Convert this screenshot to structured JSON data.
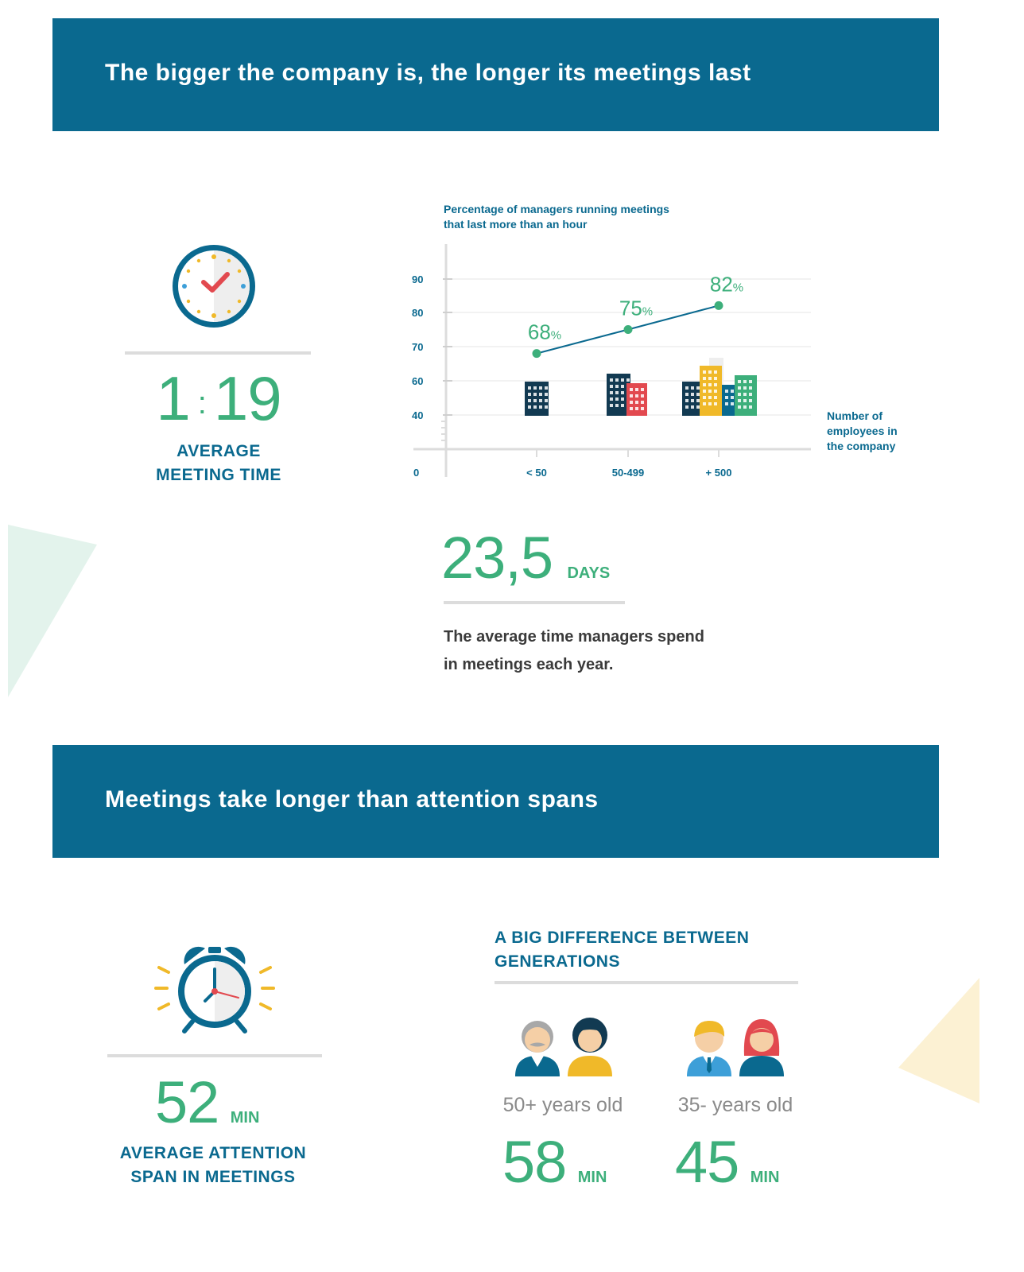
{
  "section1": {
    "title": "The bigger the company is, the longer its meetings last",
    "meeting_time": {
      "hours": "1",
      "separator": ":",
      "minutes": "19",
      "label_line1": "AVERAGE",
      "label_line2": "MEETING TIME",
      "icon": "clock-check-icon"
    },
    "days_stat": {
      "value": "23,5",
      "unit": "DAYS",
      "desc_line1": "The average time managers spend",
      "desc_line2": "in meetings each year."
    }
  },
  "chart_data": {
    "type": "line",
    "title_line1": "Percentage of managers running meetings",
    "title_line2": "that last more than an hour",
    "xlabel_line1": "Number of",
    "xlabel_line2": "employees in",
    "xlabel_line3": "the company",
    "categories": [
      "< 50",
      "50-499",
      "+ 500"
    ],
    "values": [
      68,
      75,
      82
    ],
    "value_labels": [
      "68",
      "75",
      "82"
    ],
    "value_suffix": "%",
    "y_ticks": [
      "90",
      "80",
      "70",
      "60",
      "40"
    ],
    "y_origin": "0",
    "ylim": [
      40,
      90
    ],
    "grid": true,
    "colors": {
      "line": "#0a698f",
      "point": "#3daf7b",
      "label": "#3daf7b"
    }
  },
  "section2": {
    "title": "Meetings take longer than attention spans",
    "attention": {
      "value": "52",
      "unit": "MIN",
      "label_line1": "AVERAGE ATTENTION",
      "label_line2": "SPAN IN MEETINGS",
      "icon": "alarm-clock-icon"
    },
    "generations": {
      "heading_line1": "A BIG DIFFERENCE BETWEEN",
      "heading_line2": "GENERATIONS",
      "groups": [
        {
          "label": "50+ years old",
          "value": "58",
          "unit": "MIN"
        },
        {
          "label": "35- years old",
          "value": "45",
          "unit": "MIN"
        }
      ]
    }
  },
  "colors": {
    "teal": "#0a698f",
    "green": "#3daf7b",
    "yellow": "#f0b929",
    "red": "#e2494f"
  }
}
